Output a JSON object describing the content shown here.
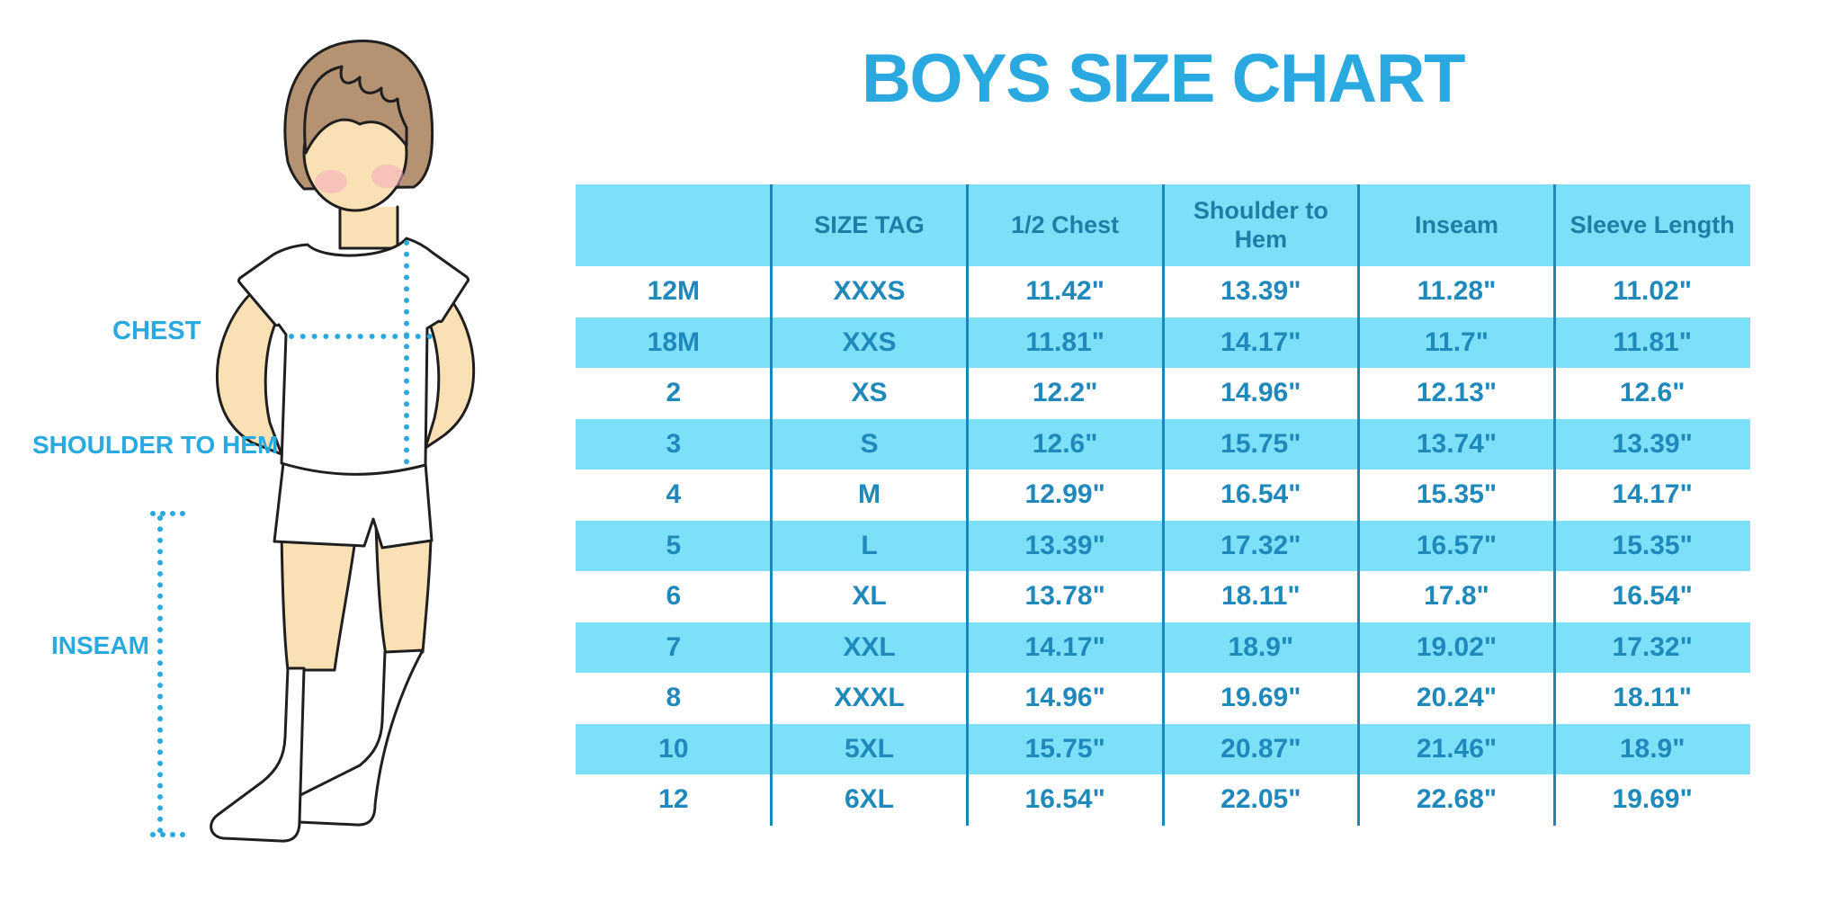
{
  "title": "BOYS SIZE CHART",
  "colors": {
    "accent": "#29A9E0",
    "stripe": "#7CE1F8",
    "line": "#1B86B8",
    "cell_text": "#2089BC",
    "header_text": "#1E7EA6",
    "outline": "#1F1F1F",
    "skin": "#FAE0B5",
    "hair": "#B49272",
    "blush": "#F2A9BE"
  },
  "figure": {
    "labels": {
      "chest": "CHEST",
      "shoulder_to_hem": "SHOULDER TO HEM",
      "inseam": "INSEAM"
    }
  },
  "chart_data": {
    "type": "table",
    "title": "BOYS SIZE CHART",
    "columns": [
      "",
      "SIZE TAG",
      "1/2 Chest",
      "Shoulder to Hem",
      "Inseam",
      "Sleeve Length"
    ],
    "rows": [
      [
        "12M",
        "XXXS",
        "11.42\"",
        "13.39\"",
        "11.28\"",
        "11.02\""
      ],
      [
        "18M",
        "XXS",
        "11.81\"",
        "14.17\"",
        "11.7\"",
        "11.81\""
      ],
      [
        "2",
        "XS",
        "12.2\"",
        "14.96\"",
        "12.13\"",
        "12.6\""
      ],
      [
        "3",
        "S",
        "12.6\"",
        "15.75\"",
        "13.74\"",
        "13.39\""
      ],
      [
        "4",
        "M",
        "12.99\"",
        "16.54\"",
        "15.35\"",
        "14.17\""
      ],
      [
        "5",
        "L",
        "13.39\"",
        "17.32\"",
        "16.57\"",
        "15.35\""
      ],
      [
        "6",
        "XL",
        "13.78\"",
        "18.11\"",
        "17.8\"",
        "16.54\""
      ],
      [
        "7",
        "XXL",
        "14.17\"",
        "18.9\"",
        "19.02\"",
        "17.32\""
      ],
      [
        "8",
        "XXXL",
        "14.96\"",
        "19.69\"",
        "20.24\"",
        "18.11\""
      ],
      [
        "10",
        "5XL",
        "15.75\"",
        "20.87\"",
        "21.46\"",
        "18.9\""
      ],
      [
        "12",
        "6XL",
        "16.54\"",
        "22.05\"",
        "22.68\"",
        "19.69\""
      ]
    ]
  }
}
